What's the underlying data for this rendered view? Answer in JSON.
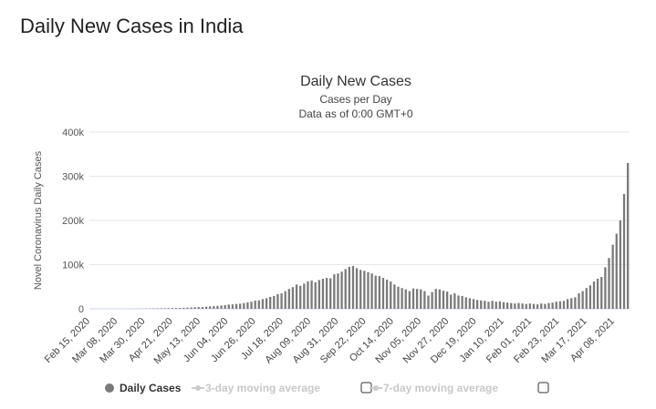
{
  "page_title": "Daily New Cases in India",
  "chart_data": {
    "type": "bar",
    "title": "Daily New Cases",
    "subtitle": "Cases per Day",
    "subtitle2": "Data as of 0:00 GMT+0",
    "ylabel": "Novel Coronavirus Daily Cases",
    "xlabel": "",
    "ylim": [
      0,
      400000
    ],
    "yticks": [
      "0",
      "100k",
      "200k",
      "300k",
      "400k"
    ],
    "xticks": [
      "Feb 15, 2020",
      "Mar 08, 2020",
      "Mar 30, 2020",
      "Apr 21, 2020",
      "May 13, 2020",
      "Jun 04, 2020",
      "Jun 26, 2020",
      "Jul 18, 2020",
      "Aug 09, 2020",
      "Aug 31, 2020",
      "Sep 22, 2020",
      "Oct 14, 2020",
      "Nov 05, 2020",
      "Nov 27, 2020",
      "Dec 19, 2020",
      "Jan 10, 2021",
      "Feb 01, 2021",
      "Feb 23, 2021",
      "Mar 17, 2021",
      "Apr 08, 2021"
    ],
    "xtick_step_days": 22,
    "x_start": "Feb 15, 2020",
    "x_step_days": 3,
    "values_thousands": [
      0,
      0,
      0,
      0,
      0,
      0,
      0,
      0.01,
      0.02,
      0.05,
      0.08,
      0.1,
      0.15,
      0.2,
      0.3,
      0.5,
      0.6,
      0.9,
      1.0,
      1.2,
      1.3,
      1.5,
      1.6,
      1.8,
      2.0,
      2.3,
      2.5,
      3.0,
      3.5,
      3.8,
      4.0,
      4.9,
      5.6,
      6.0,
      6.6,
      7.5,
      8.2,
      9.5,
      9.9,
      10.9,
      11.5,
      12.9,
      14.5,
      15.9,
      18.5,
      19.0,
      22,
      24,
      27,
      29,
      33,
      35,
      40,
      45,
      49,
      55,
      52,
      57,
      62,
      64,
      60,
      65,
      68,
      70,
      69,
      78,
      80,
      84,
      90,
      95,
      97,
      92,
      88,
      86,
      83,
      80,
      75,
      74,
      70,
      66,
      62,
      55,
      50,
      47,
      44,
      40,
      46,
      45,
      44,
      40,
      30,
      38,
      45,
      44,
      41,
      39,
      32,
      35,
      30,
      29,
      26,
      24,
      22,
      20,
      19,
      18,
      16,
      18,
      16,
      17,
      15,
      14,
      13,
      12,
      13,
      12,
      11,
      12,
      11,
      10,
      12,
      11,
      13,
      14,
      16,
      17,
      18,
      22,
      24,
      26,
      35,
      40,
      47,
      53,
      62,
      68,
      72,
      94,
      115,
      145,
      170,
      200,
      260,
      330
    ],
    "legend": [
      {
        "label": "Daily Cases",
        "color": "#7a7a7a",
        "active": true
      },
      {
        "label": "3-day moving average",
        "color": "#cccccc",
        "active": false
      },
      {
        "label": "7-day moving average",
        "color": "#cccccc",
        "active": false
      }
    ],
    "bar_color": "#7a7a7a",
    "grid": true,
    "legend_position": "bottom"
  }
}
